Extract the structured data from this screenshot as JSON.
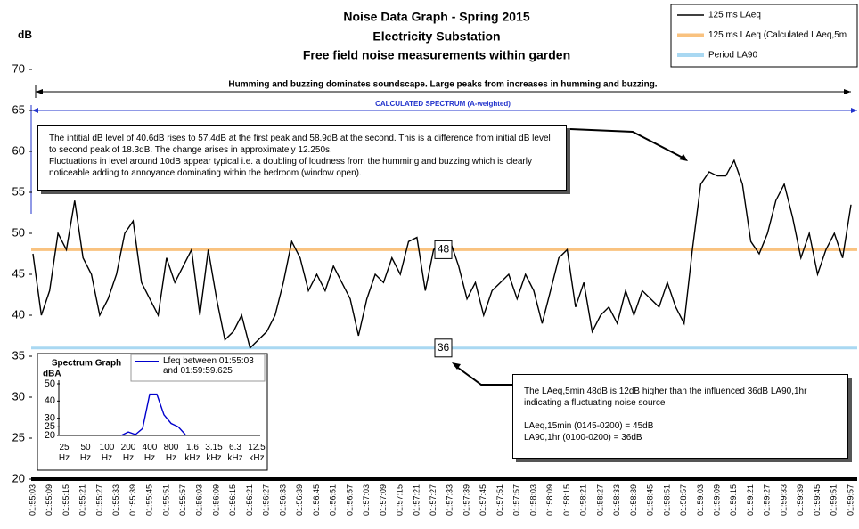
{
  "chart_data": {
    "type": "line",
    "title": [
      "Noise Data Graph - Spring 2015",
      "Electricity Substation",
      "Free field noise measurements within garden"
    ],
    "ylabel": "dB",
    "ylim": [
      20,
      70
    ],
    "yticks": [
      20,
      25,
      30,
      35,
      40,
      45,
      50,
      55,
      60,
      65,
      70
    ],
    "categories": [
      "01:55:03",
      null,
      "01:55:09",
      null,
      "01:55:15",
      null,
      "01:55:21",
      null,
      "01:55:27",
      null,
      "01:55:33",
      null,
      "01:55:39",
      null,
      "01:55:45",
      null,
      "01:55:51",
      null,
      "01:55:57",
      null,
      "01:56:03",
      null,
      "01:56:09",
      null,
      "01:56:15",
      null,
      "01:56:21",
      null,
      "01:56:27",
      null,
      "01:56:33",
      null,
      "01:56:39",
      null,
      "01:56:45",
      null,
      "01:56:51",
      null,
      "01:56:57",
      null,
      "01:57:03",
      null,
      "01:57:09",
      null,
      "01:57:15",
      null,
      "01:57:21",
      null,
      "01:57:27",
      null,
      "01:57:33",
      null,
      "01:57:39",
      null,
      "01:57:45",
      null,
      "01:57:51",
      null,
      "01:57:57",
      null,
      "01:58:03",
      null,
      "01:58:09",
      null,
      "01:58:15",
      null,
      "01:58:21",
      null,
      "01:58:27",
      null,
      "01:58:33",
      null,
      "01:58:39",
      null,
      "01:58:45",
      null,
      "01:58:51",
      null,
      "01:58:57",
      null,
      "01:59:03",
      null,
      "01:59:09",
      null,
      "01:59:15",
      null,
      "01:59:21",
      null,
      "01:59:27",
      null,
      "01:59:33",
      null,
      "01:59:39",
      null,
      "01:59:45",
      null,
      "01:59:51",
      null,
      "01:59:57"
    ],
    "series": [
      {
        "name": "125 ms LAeq",
        "color": "#000000",
        "values": [
          47.5,
          40,
          43,
          50,
          48,
          54,
          47,
          45,
          40,
          42,
          45,
          50,
          51.5,
          44,
          42,
          40,
          47,
          44,
          46,
          48,
          40,
          48,
          42,
          37,
          38,
          40,
          36,
          37,
          38,
          40,
          44,
          49,
          47,
          43,
          45,
          43,
          46,
          44,
          42,
          37.5,
          42,
          45,
          44,
          47,
          45,
          49,
          49.5,
          43,
          48,
          49,
          49,
          46,
          42,
          44,
          40,
          43,
          44,
          45,
          42,
          45,
          43,
          39,
          43,
          47,
          48,
          41,
          44,
          38,
          40,
          41,
          39,
          43,
          40,
          43,
          42,
          41,
          44,
          41,
          39,
          48,
          56,
          57.5,
          57,
          57,
          58.9,
          56,
          49,
          47.5,
          50,
          54,
          56,
          52,
          47,
          50,
          45,
          48,
          50,
          47,
          53.5
        ]
      },
      {
        "name": "125 ms LAeq (Calculated LAeq,5m",
        "color": "#f9c27f",
        "value": 48
      },
      {
        "name": "Period LA90",
        "color": "#a9d8f2",
        "value": 36
      }
    ],
    "annotations": {
      "top_arrow": "Humming and buzzing dominates soundscape. Large peaks from increases in humming and buzzing.",
      "spectrum": "CALCULATED SPECTRUM (A-weighted)",
      "box1": [
        "The intitial dB level of 40.6dB rises to 57.4dB at the first peak and 58.9dB at the second. This is a difference from initial dB level to second peak of 18.3dB. The change arises in approximately 12.250s.",
        "Fluctuations in level around 10dB appear typical i.e. a doubling of loudness from the humming and buzzing which is clearly noticeable adding to annoyance dominating within the bedroom (window open)."
      ],
      "box2": [
        "The LAeq,5min 48dB is 12dB higher than the influenced 36dB LA90,1hr indicating a fluctuating noise source",
        "LAeq,15min (0145-0200) = 45dB",
        "LA90,1hr (0100-0200) = 36dB"
      ]
    },
    "inset": {
      "type": "line",
      "title": "Spectrum Graph",
      "ylabel": "dBA",
      "ylim": [
        20,
        50
      ],
      "yticks": [
        20,
        25,
        30,
        40,
        50
      ],
      "categories": [
        "25 Hz",
        null,
        null,
        "50 Hz",
        null,
        null,
        "100 Hz",
        null,
        null,
        "200 Hz",
        null,
        null,
        "400 Hz",
        null,
        null,
        "800 Hz",
        null,
        null,
        "1.6 kHz",
        null,
        null,
        "3.15 kHz",
        null,
        null,
        "6.3 kHz",
        null,
        null,
        "12.5 kHz"
      ],
      "series": [
        {
          "name": "Lfeq  between 01:55:03 and 01:59:59.625",
          "color": "#0000cc",
          "values": [
            null,
            null,
            null,
            null,
            null,
            null,
            null,
            null,
            20,
            22,
            20.5,
            24,
            44,
            44,
            32,
            27,
            25,
            20.5,
            null,
            null,
            null,
            null,
            null,
            null,
            null,
            null,
            null,
            null
          ]
        }
      ]
    }
  }
}
